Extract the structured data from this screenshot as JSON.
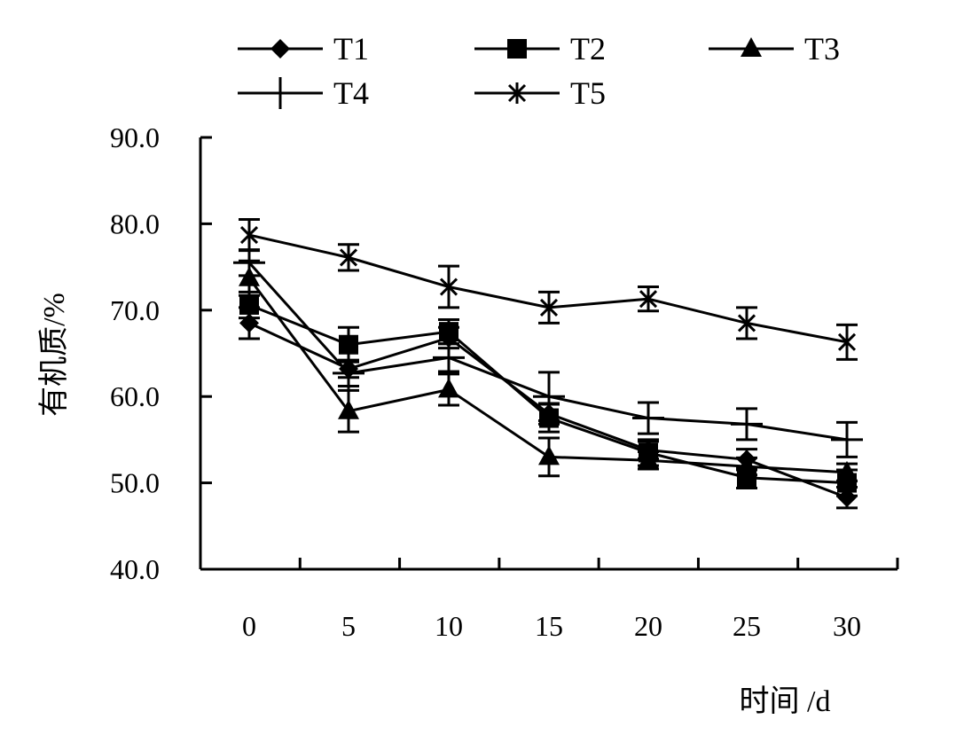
{
  "chart_data": {
    "type": "line",
    "title": "",
    "xlabel": "时间 /d",
    "ylabel": "有机质/%",
    "x": [
      0,
      5,
      10,
      15,
      20,
      25,
      30
    ],
    "x_tick_labels": [
      "0",
      "5",
      "10",
      "15",
      "20",
      "25",
      "30"
    ],
    "ylim": [
      40.0,
      90.0
    ],
    "y_tick_labels": [
      "40.0",
      "50.0",
      "60.0",
      "70.0",
      "80.0",
      "90.0"
    ],
    "y_ticks": [
      40,
      50,
      60,
      70,
      80,
      90
    ],
    "grid": false,
    "legend_position": "top",
    "series": [
      {
        "name": "T1",
        "marker": "diamond",
        "values": [
          68.5,
          63.2,
          66.8,
          58.0,
          53.8,
          52.7,
          48.3
        ],
        "errors": [
          1.8,
          1.0,
          1.2,
          1.2,
          1.0,
          1.2,
          1.2
        ]
      },
      {
        "name": "T2",
        "marker": "square",
        "values": [
          70.6,
          66.0,
          67.5,
          57.5,
          53.5,
          50.6,
          50.0
        ],
        "errors": [
          1.5,
          2.0,
          1.4,
          1.6,
          1.5,
          1.2,
          1.5
        ]
      },
      {
        "name": "T3",
        "marker": "triangle",
        "values": [
          73.7,
          58.3,
          60.8,
          53.0,
          52.6,
          51.9,
          51.2
        ],
        "errors": [
          2.0,
          2.4,
          1.8,
          2.2,
          1.0,
          1.0,
          1.0
        ]
      },
      {
        "name": "T4",
        "marker": "plus",
        "values": [
          75.5,
          62.7,
          64.5,
          60.0,
          57.5,
          56.8,
          55.0
        ],
        "errors": [
          1.5,
          1.5,
          1.6,
          2.8,
          1.8,
          1.8,
          2.0
        ]
      },
      {
        "name": "T5",
        "marker": "star",
        "values": [
          78.7,
          76.1,
          72.7,
          70.3,
          71.3,
          68.5,
          66.3
        ],
        "errors": [
          1.8,
          1.5,
          2.4,
          1.8,
          1.4,
          1.8,
          2.0
        ]
      }
    ],
    "colors": {
      "line": "#000000",
      "background": "#ffffff"
    }
  }
}
